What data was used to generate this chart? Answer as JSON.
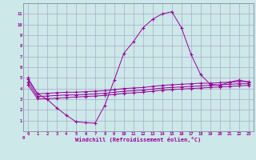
{
  "background_color": "#cce8e8",
  "grid_color": "#aaaacc",
  "line_color": "#990099",
  "spine_color": "#8888aa",
  "marker": "+",
  "xlabel": "Windchill (Refroidissement éolien,°C)",
  "xlim": [
    -0.5,
    23.5
  ],
  "ylim": [
    0,
    12
  ],
  "xticks": [
    0,
    1,
    2,
    3,
    4,
    5,
    6,
    7,
    8,
    9,
    10,
    11,
    12,
    13,
    14,
    15,
    16,
    17,
    18,
    19,
    20,
    21,
    22,
    23
  ],
  "yticks": [
    1,
    2,
    3,
    4,
    5,
    6,
    7,
    8,
    9,
    10,
    11
  ],
  "series": [
    {
      "x": [
        0,
        1,
        2,
        3,
        4,
        5,
        6,
        7,
        8,
        9,
        10,
        11,
        12,
        13,
        14,
        15,
        16,
        17,
        18,
        19,
        20,
        21,
        22,
        23
      ],
      "y": [
        5.0,
        3.5,
        3.0,
        2.2,
        1.5,
        0.9,
        0.8,
        0.75,
        2.4,
        4.8,
        7.3,
        8.4,
        9.7,
        10.5,
        11.0,
        11.2,
        9.7,
        7.2,
        5.3,
        4.4,
        4.3,
        4.6,
        4.8,
        4.6
      ]
    },
    {
      "x": [
        0,
        1,
        2,
        3,
        4,
        5,
        6,
        7,
        8,
        9,
        10,
        11,
        12,
        13,
        14,
        15,
        16,
        17,
        18,
        19,
        20,
        21,
        22,
        23
      ],
      "y": [
        4.85,
        3.5,
        3.55,
        3.6,
        3.65,
        3.65,
        3.7,
        3.75,
        3.8,
        3.9,
        4.0,
        4.05,
        4.1,
        4.2,
        4.3,
        4.35,
        4.4,
        4.45,
        4.5,
        4.5,
        4.55,
        4.6,
        4.65,
        4.65
      ]
    },
    {
      "x": [
        0,
        1,
        2,
        3,
        4,
        5,
        6,
        7,
        8,
        9,
        10,
        11,
        12,
        13,
        14,
        15,
        16,
        17,
        18,
        19,
        20,
        21,
        22,
        23
      ],
      "y": [
        4.6,
        3.25,
        3.3,
        3.35,
        3.4,
        3.4,
        3.45,
        3.5,
        3.55,
        3.65,
        3.75,
        3.8,
        3.85,
        3.95,
        4.05,
        4.1,
        4.15,
        4.2,
        4.25,
        4.3,
        4.35,
        4.4,
        4.45,
        4.45
      ]
    },
    {
      "x": [
        0,
        1,
        2,
        3,
        4,
        5,
        6,
        7,
        8,
        9,
        10,
        11,
        12,
        13,
        14,
        15,
        16,
        17,
        18,
        19,
        20,
        21,
        22,
        23
      ],
      "y": [
        4.35,
        3.05,
        3.05,
        3.1,
        3.15,
        3.2,
        3.25,
        3.3,
        3.35,
        3.45,
        3.55,
        3.6,
        3.65,
        3.75,
        3.85,
        3.9,
        3.95,
        4.0,
        4.05,
        4.1,
        4.15,
        4.2,
        4.25,
        4.3
      ]
    }
  ]
}
